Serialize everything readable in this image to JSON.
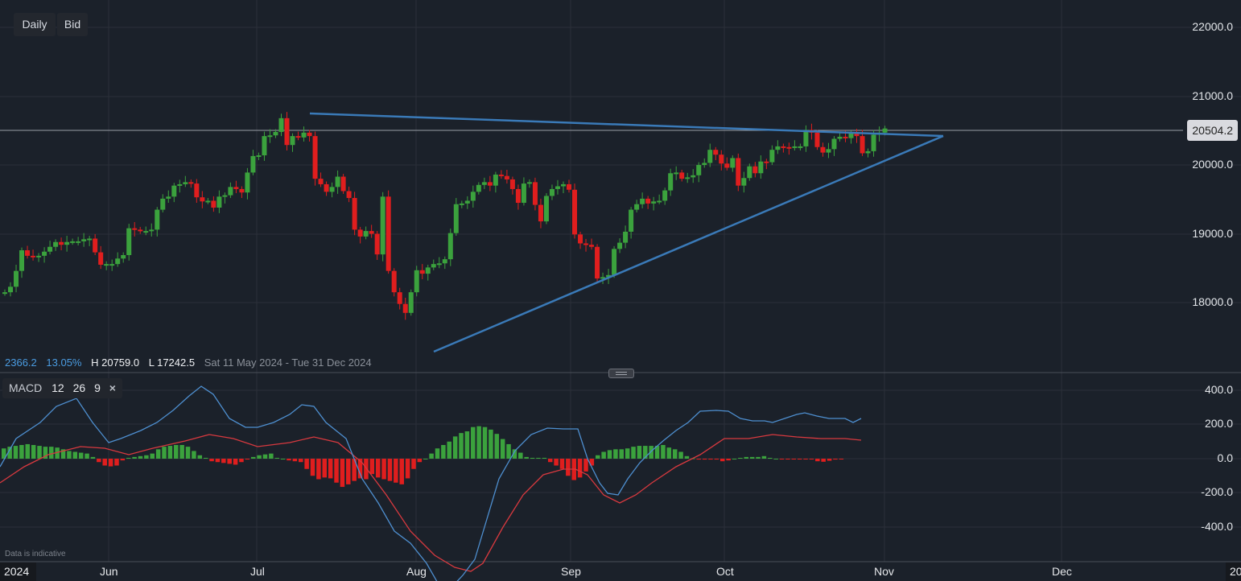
{
  "toolbar": {
    "interval_label": "Daily",
    "price_type_label": "Bid"
  },
  "price_axis": {
    "labels": [
      "22000.0",
      "21000.0",
      "20000.0",
      "19000.0",
      "18000.0"
    ],
    "current_price": "20504.2"
  },
  "stats": {
    "change": "2366.2",
    "change_pct": "13.05%",
    "high": "H 20759.0",
    "low": "L 17242.5",
    "range": "Sat 11 May 2024 - Tue 31 Dec 2024"
  },
  "macd_legend": {
    "name": "MACD",
    "fast": "12",
    "slow": "26",
    "signal": "9",
    "close_icon": "×"
  },
  "macd_axis": {
    "labels": [
      "400.0",
      "200.0",
      "0.0",
      "-200.0",
      "-400.0"
    ]
  },
  "time_axis": {
    "year_left": "2024",
    "months": [
      "Jun",
      "Jul",
      "Aug",
      "Sep",
      "Oct",
      "Nov",
      "Dec"
    ],
    "year_right": "20"
  },
  "footer": {
    "disclaimer": "Data is indicative"
  },
  "colors": {
    "background": "#1b212a",
    "up": "#3ba23d",
    "down": "#e01e1e",
    "trendline": "#3a7ab8",
    "macd_line": "#4e8fd0",
    "signal_line": "#d8393f",
    "grid": "#2b3039"
  },
  "chart_data": [
    {
      "type": "candlestick",
      "title": "Daily Bid",
      "x_range": "Sat 11 May 2024 - Tue 31 Dec 2024",
      "xlabel": "",
      "ylabel": "Price",
      "y_ticks": [
        18000,
        19000,
        20000,
        21000,
        22000
      ],
      "ylim": [
        17000,
        22300
      ],
      "x_ticks": [
        "Jun",
        "Jul",
        "Aug",
        "Sep",
        "Oct",
        "Nov",
        "Dec"
      ],
      "high": 20759.0,
      "low": 17242.5,
      "last": 20504.2,
      "change": 2366.2,
      "change_pct": 13.05,
      "grid": true,
      "trendlines": [
        {
          "name": "resistance",
          "from": [
            "2024-07-11",
            20759
          ],
          "to": [
            "2024-11-12",
            20420
          ]
        },
        {
          "name": "support",
          "from": [
            "2024-08-05",
            17242
          ],
          "to": [
            "2024-11-12",
            20420
          ]
        }
      ],
      "candles": [
        [
          "2024-05-13",
          18140,
          18180,
          18120,
          18150
        ],
        [
          "2024-05-14",
          18150,
          18250,
          18110,
          18230
        ],
        [
          "2024-05-15",
          18230,
          18490,
          18170,
          18460
        ],
        [
          "2024-05-16",
          18460,
          18780,
          18420,
          18760
        ],
        [
          "2024-05-17",
          18760,
          18810,
          18640,
          18680
        ],
        [
          "2024-05-20",
          18680,
          18710,
          18590,
          18670
        ],
        [
          "2024-05-21",
          18670,
          18690,
          18640,
          18680
        ],
        [
          "2024-05-22",
          18680,
          18760,
          18650,
          18740
        ],
        [
          "2024-05-23",
          18740,
          18840,
          18700,
          18810
        ],
        [
          "2024-05-24",
          18810,
          18900,
          18790,
          18880
        ],
        [
          "2024-05-28",
          18880,
          18930,
          18780,
          18840
        ],
        [
          "2024-05-29",
          18840,
          18900,
          18770,
          18880
        ],
        [
          "2024-05-30",
          18880,
          19050,
          18790,
          18890
        ],
        [
          "2024-06-03",
          18890,
          18900,
          18850,
          18890
        ],
        [
          "2024-06-04",
          18890,
          18940,
          18870,
          18920
        ],
        [
          "2024-06-05",
          18920,
          18950,
          18900,
          18930
        ],
        [
          "2024-06-06",
          18930,
          18940,
          18700,
          18730
        ],
        [
          "2024-06-07",
          18730,
          18760,
          18540,
          18550
        ],
        [
          "2024-06-10",
          18550,
          18720,
          18350,
          18560
        ],
        [
          "2024-06-11",
          18560,
          18590,
          18540,
          18560
        ],
        [
          "2024-06-12",
          18560,
          18750,
          18460,
          18640
        ],
        [
          "2024-06-13",
          18640,
          18760,
          18520,
          18690
        ],
        [
          "2024-06-14",
          18690,
          19100,
          18690,
          19080
        ],
        [
          "2024-06-17",
          19080,
          19120,
          19030,
          19060
        ],
        [
          "2024-06-18",
          19060,
          19140,
          19010,
          19040
        ],
        [
          "2024-06-20",
          19040,
          19060,
          19030,
          19040
        ],
        [
          "2024-06-21",
          19040,
          19100,
          18990,
          19060
        ],
        [
          "2024-06-24",
          19060,
          19380,
          19020,
          19350
        ],
        [
          "2024-06-25",
          19350,
          19520,
          19340,
          19510
        ],
        [
          "2024-06-26",
          19510,
          19560,
          19500,
          19540
        ],
        [
          "2024-06-27",
          19540,
          19750,
          19480,
          19700
        ],
        [
          "2024-06-28",
          19700,
          19760,
          19610,
          19720
        ],
        [
          "2024-07-01",
          19720,
          19770,
          19690,
          19750
        ],
        [
          "2024-07-02",
          19750,
          19760,
          19720,
          19730
        ],
        [
          "2024-07-03",
          19730,
          19880,
          19600,
          19530
        ],
        [
          "2024-07-05",
          19530,
          19700,
          19440,
          19470
        ],
        [
          "2024-07-08",
          19470,
          19500,
          19460,
          19480
        ],
        [
          "2024-07-09",
          19480,
          19620,
          19390,
          19380
        ],
        [
          "2024-07-10",
          19380,
          19500,
          19330,
          19540
        ],
        [
          "2024-07-11",
          19540,
          19620,
          19520,
          19560
        ],
        [
          "2024-07-12",
          19560,
          19740,
          19450,
          19680
        ],
        [
          "2024-07-15",
          19680,
          19700,
          19610,
          19650
        ],
        [
          "2024-07-16",
          19650,
          19900,
          19550,
          19600
        ],
        [
          "2024-07-17",
          19600,
          19700,
          19580,
          19890
        ],
        [
          "2024-07-18",
          19890,
          20140,
          19870,
          20130
        ],
        [
          "2024-07-19",
          20130,
          20210,
          20120,
          20140
        ],
        [
          "2024-07-22",
          20140,
          20220,
          20110,
          20420
        ],
        [
          "2024-07-23",
          20420,
          20430,
          20370,
          20430
        ],
        [
          "2024-07-24",
          20430,
          20510,
          20410,
          20480
        ],
        [
          "2024-07-25",
          20480,
          20590,
          20450,
          20680
        ],
        [
          "2024-07-26",
          20680,
          20759,
          20240,
          20290
        ],
        [
          "2024-07-29",
          20290,
          20480,
          20150,
          20420
        ],
        [
          "2024-07-30",
          20420,
          20440,
          20380,
          20400
        ],
        [
          "2024-07-31",
          20400,
          20590,
          20400,
          20470
        ],
        [
          "2024-08-01",
          20470,
          20510,
          20300,
          20420
        ],
        [
          "2024-08-02",
          20420,
          20420,
          20100,
          19800
        ]
      ],
      "note": "candles are approximate OHLC read from pixel positions; full series continues through late Oct 2024 ending at 20504.2"
    },
    {
      "type": "macd",
      "title": "MACD 12 26 9",
      "y_ticks": [
        -400,
        -200,
        0,
        200,
        400
      ],
      "ylim": [
        -500,
        450
      ],
      "series": [
        {
          "name": "MACD",
          "color": "#4e8fd0"
        },
        {
          "name": "Signal",
          "color": "#d8393f"
        },
        {
          "name": "Histogram",
          "colors": [
            "#3ba23d",
            "#e01e1e"
          ]
        }
      ],
      "key_points": {
        "macd_high_jul": 380,
        "macd_low_aug": -470,
        "signal_low_aug": -360,
        "macd_end": 160,
        "signal_end": 165,
        "hist_max_aug": 190,
        "hist_min_aug": -170
      }
    }
  ]
}
